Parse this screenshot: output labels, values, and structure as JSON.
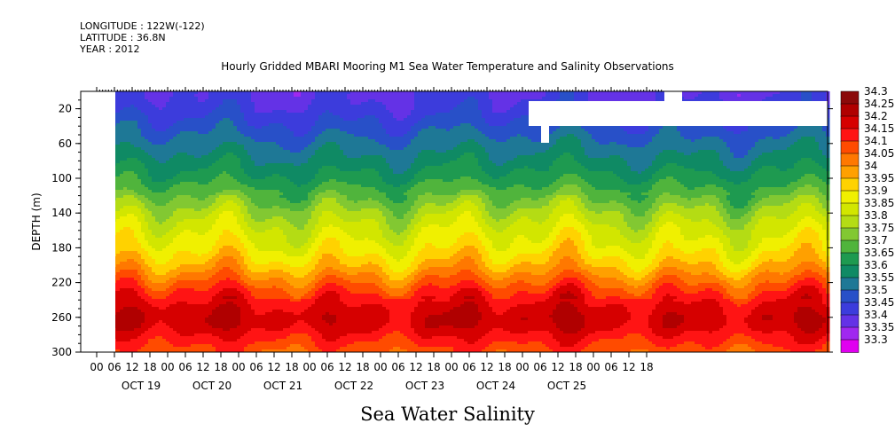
{
  "header": {
    "longitude_line": "LONGITUDE : 122W(-122)",
    "latitude_line": "LATITUDE : 36.8N",
    "year_line": "YEAR : 2012"
  },
  "title": "Hourly Gridded MBARI Mooring M1 Sea Water Temperature and Salinity Observations",
  "footer_title": "Sea Water Salinity",
  "chart_data": {
    "type": "heatmap",
    "title": "Hourly Gridded MBARI Mooring M1 Sea Water Temperature and Salinity Observations",
    "subtitle": "Sea Water Salinity",
    "xlabel": "",
    "ylabel": "DEPTH (m)",
    "ylim": [
      300,
      0
    ],
    "y_ticks": [
      20,
      60,
      100,
      140,
      180,
      220,
      260,
      300
    ],
    "x_hour_ticks": [
      "00",
      "06",
      "12",
      "18",
      "00",
      "06",
      "12",
      "18",
      "00",
      "06",
      "12",
      "18",
      "00",
      "06",
      "12",
      "18",
      "00",
      "06",
      "12",
      "18",
      "00",
      "06",
      "12",
      "18",
      "00",
      "06",
      "12",
      "18",
      "00",
      "06",
      "12",
      "18"
    ],
    "x_day_labels": [
      "OCT 19",
      "OCT 20",
      "OCT 21",
      "OCT 22",
      "OCT 23",
      "OCT 24",
      "OCT 25"
    ],
    "colorbar": {
      "levels": [
        "34.3",
        "34.25",
        "34.2",
        "34.15",
        "34.1",
        "34.05",
        "34",
        "33.95",
        "33.9",
        "33.85",
        "33.8",
        "33.75",
        "33.7",
        "33.65",
        "33.6",
        "33.55",
        "33.5",
        "33.45",
        "33.4",
        "33.35",
        "33.3"
      ],
      "colors": [
        "#8b0a0a",
        "#b00000",
        "#d60000",
        "#ff1414",
        "#ff4b00",
        "#ff7800",
        "#ffa000",
        "#ffd200",
        "#f0f000",
        "#d2e600",
        "#b4dc14",
        "#82c832",
        "#50b43c",
        "#1e9a50",
        "#0f8a64",
        "#1e7896",
        "#2850c8",
        "#3c3cdc",
        "#6432e6",
        "#a028f0",
        "#e000f0"
      ],
      "below_colors": [
        "#c000ff"
      ]
    },
    "salinity_profile_by_depth": {
      "depth_m": [
        5,
        20,
        40,
        60,
        80,
        100,
        120,
        140,
        160,
        180,
        200,
        210,
        220,
        230,
        240,
        250,
        260,
        270,
        280,
        300
      ],
      "salinity": [
        33.45,
        33.47,
        33.52,
        33.57,
        33.62,
        33.67,
        33.74,
        33.82,
        33.88,
        33.93,
        34.0,
        34.05,
        34.1,
        34.15,
        34.19,
        34.22,
        34.24,
        34.23,
        34.19,
        34.12
      ]
    }
  }
}
